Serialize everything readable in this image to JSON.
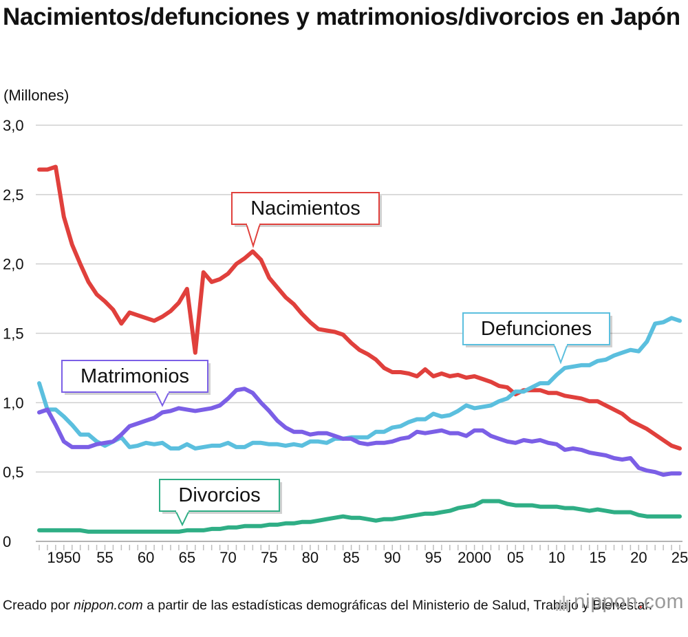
{
  "title": "Nacimientos/defunciones y matrimonios/divorcios en Japón",
  "unit_label": "(Millones)",
  "note": {
    "prefix": "Creado por ",
    "source": "nippon.com",
    "suffix": " a partir de las estadísticas demográficas del Ministerio de Salud, Trabajo y Bienestar."
  },
  "logo": {
    "name": "nippon",
    "dot": ".",
    "tld": "com"
  },
  "colors": {
    "births": "#e0403c",
    "deaths": "#5bbfde",
    "marriages": "#7b5fe6",
    "divorces": "#2fae85",
    "grid": "#cfcfcf",
    "text": "#111111"
  },
  "chart_data": {
    "type": "line",
    "ylim": [
      0,
      3.0
    ],
    "y_ticks": [
      "0",
      "0,5",
      "1,0",
      "1,5",
      "2,0",
      "2,5",
      "3,0"
    ],
    "y_tick_values": [
      0,
      0.5,
      1.0,
      1.5,
      2.0,
      2.5,
      3.0
    ],
    "x_range": [
      1947,
      2025
    ],
    "x_ticks": [
      {
        "year": 1950,
        "label": "1950"
      },
      {
        "year": 1955,
        "label": "55"
      },
      {
        "year": 1960,
        "label": "60"
      },
      {
        "year": 1965,
        "label": "65"
      },
      {
        "year": 1970,
        "label": "70"
      },
      {
        "year": 1975,
        "label": "75"
      },
      {
        "year": 1980,
        "label": "80"
      },
      {
        "year": 1985,
        "label": "85"
      },
      {
        "year": 1990,
        "label": "90"
      },
      {
        "year": 1995,
        "label": "95"
      },
      {
        "year": 2000,
        "label": "2000"
      },
      {
        "year": 2005,
        "label": "05"
      },
      {
        "year": 2010,
        "label": "10"
      },
      {
        "year": 2015,
        "label": "15"
      },
      {
        "year": 2020,
        "label": "20"
      },
      {
        "year": 2025,
        "label": "25"
      }
    ],
    "series": [
      {
        "key": "births",
        "name": "Nacimientos",
        "color": "#e0403c",
        "start_year": 1947,
        "values": [
          2.68,
          2.68,
          2.7,
          2.34,
          2.14,
          2.0,
          1.87,
          1.78,
          1.73,
          1.67,
          1.57,
          1.65,
          1.63,
          1.61,
          1.59,
          1.62,
          1.66,
          1.72,
          1.82,
          1.36,
          1.94,
          1.87,
          1.89,
          1.93,
          2.0,
          2.04,
          2.09,
          2.03,
          1.9,
          1.83,
          1.76,
          1.71,
          1.64,
          1.58,
          1.53,
          1.52,
          1.51,
          1.49,
          1.43,
          1.38,
          1.35,
          1.31,
          1.25,
          1.22,
          1.22,
          1.21,
          1.19,
          1.24,
          1.19,
          1.21,
          1.19,
          1.2,
          1.18,
          1.19,
          1.17,
          1.15,
          1.12,
          1.11,
          1.06,
          1.09,
          1.09,
          1.09,
          1.07,
          1.07,
          1.05,
          1.04,
          1.03,
          1.01,
          1.01,
          0.98,
          0.95,
          0.92,
          0.87,
          0.84,
          0.81,
          0.77,
          0.73,
          0.69,
          0.67
        ]
      },
      {
        "key": "deaths",
        "name": "Defunciones",
        "color": "#5bbfde",
        "start_year": 1947,
        "values": [
          1.14,
          0.95,
          0.95,
          0.9,
          0.84,
          0.77,
          0.77,
          0.72,
          0.69,
          0.72,
          0.75,
          0.68,
          0.69,
          0.71,
          0.7,
          0.71,
          0.67,
          0.67,
          0.7,
          0.67,
          0.68,
          0.69,
          0.69,
          0.71,
          0.68,
          0.68,
          0.71,
          0.71,
          0.7,
          0.7,
          0.69,
          0.7,
          0.69,
          0.72,
          0.72,
          0.71,
          0.74,
          0.74,
          0.75,
          0.75,
          0.75,
          0.79,
          0.79,
          0.82,
          0.83,
          0.86,
          0.88,
          0.88,
          0.92,
          0.9,
          0.91,
          0.94,
          0.98,
          0.96,
          0.97,
          0.98,
          1.01,
          1.03,
          1.08,
          1.08,
          1.11,
          1.14,
          1.14,
          1.2,
          1.25,
          1.26,
          1.27,
          1.27,
          1.3,
          1.31,
          1.34,
          1.36,
          1.38,
          1.37,
          1.44,
          1.57,
          1.58,
          1.61,
          1.59
        ]
      },
      {
        "key": "marriages",
        "name": "Matrimonios",
        "color": "#7b5fe6",
        "start_year": 1947,
        "values": [
          0.93,
          0.95,
          0.84,
          0.72,
          0.68,
          0.68,
          0.68,
          0.7,
          0.71,
          0.72,
          0.77,
          0.83,
          0.85,
          0.87,
          0.89,
          0.93,
          0.94,
          0.96,
          0.95,
          0.94,
          0.95,
          0.96,
          0.98,
          1.03,
          1.09,
          1.1,
          1.07,
          1.0,
          0.94,
          0.87,
          0.82,
          0.79,
          0.79,
          0.77,
          0.78,
          0.78,
          0.76,
          0.74,
          0.74,
          0.71,
          0.7,
          0.71,
          0.71,
          0.72,
          0.74,
          0.75,
          0.79,
          0.78,
          0.79,
          0.8,
          0.78,
          0.78,
          0.76,
          0.8,
          0.8,
          0.76,
          0.74,
          0.72,
          0.71,
          0.73,
          0.72,
          0.73,
          0.71,
          0.7,
          0.66,
          0.67,
          0.66,
          0.64,
          0.63,
          0.62,
          0.6,
          0.59,
          0.6,
          0.53,
          0.51,
          0.5,
          0.48,
          0.49,
          0.49
        ]
      },
      {
        "key": "divorces",
        "name": "Divorcios",
        "color": "#2fae85",
        "start_year": 1947,
        "values": [
          0.08,
          0.08,
          0.08,
          0.08,
          0.08,
          0.08,
          0.07,
          0.07,
          0.07,
          0.07,
          0.07,
          0.07,
          0.07,
          0.07,
          0.07,
          0.07,
          0.07,
          0.07,
          0.08,
          0.08,
          0.08,
          0.09,
          0.09,
          0.1,
          0.1,
          0.11,
          0.11,
          0.11,
          0.12,
          0.12,
          0.13,
          0.13,
          0.14,
          0.14,
          0.15,
          0.16,
          0.17,
          0.18,
          0.17,
          0.17,
          0.16,
          0.15,
          0.16,
          0.16,
          0.17,
          0.18,
          0.19,
          0.2,
          0.2,
          0.21,
          0.22,
          0.24,
          0.25,
          0.26,
          0.29,
          0.29,
          0.29,
          0.27,
          0.26,
          0.26,
          0.26,
          0.25,
          0.25,
          0.25,
          0.24,
          0.24,
          0.23,
          0.22,
          0.23,
          0.22,
          0.21,
          0.21,
          0.21,
          0.19,
          0.18,
          0.18,
          0.18,
          0.18,
          0.18
        ]
      }
    ],
    "callouts": [
      {
        "key": "births",
        "label": "Nacimientos"
      },
      {
        "key": "deaths",
        "label": "Defunciones"
      },
      {
        "key": "marriages",
        "label": "Matrimonios"
      },
      {
        "key": "divorces",
        "label": "Divorcios"
      }
    ]
  }
}
